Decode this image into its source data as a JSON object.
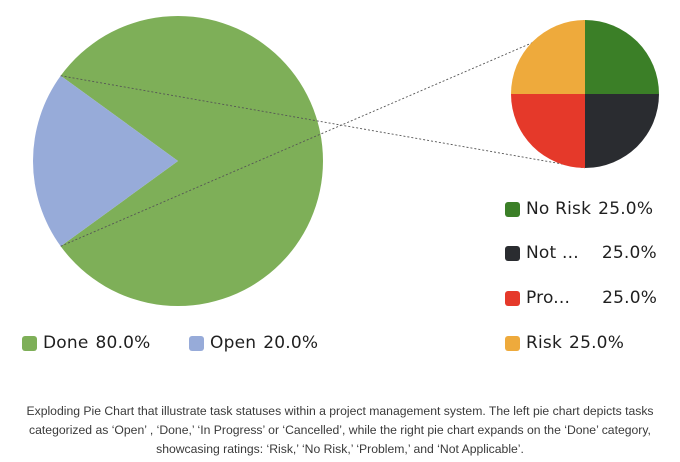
{
  "chart_data": [
    {
      "type": "pie",
      "title": "",
      "slices": [
        {
          "label": "Done",
          "value": 80.0,
          "pct_label": "80.0%",
          "color": "#7eaf58"
        },
        {
          "label": "Open",
          "value": 20.0,
          "pct_label": "20.0%",
          "color": "#97abd9"
        }
      ],
      "legend_placement": "bottom"
    },
    {
      "type": "pie",
      "title": "",
      "expands": "Done",
      "slices": [
        {
          "label": "No Risk",
          "value": 25.0,
          "pct_label": "25.0%",
          "color": "#3b7f27"
        },
        {
          "label": "Not ...",
          "value": 25.0,
          "pct_label": "25.0%",
          "color": "#2a2c30"
        },
        {
          "label": "Pro...",
          "value": 25.0,
          "pct_label": "25.0%",
          "color": "#e5392a"
        },
        {
          "label": "Risk",
          "value": 25.0,
          "pct_label": "25.0%",
          "color": "#eeaa3c"
        }
      ],
      "legend_placement": "right"
    }
  ],
  "caption": "Exploding Pie Chart that illustrate task statuses within a project management system. The left pie chart depicts tasks categorized as ‘Open’ , ‘Done,’ ‘In Progress’ or ‘Cancelled’, while the right pie chart expands on the ‘Done’ category, showcasing ratings: ‘Risk,’ ‘No Risk,’ ‘Problem,’ and ‘Not Applicable’."
}
